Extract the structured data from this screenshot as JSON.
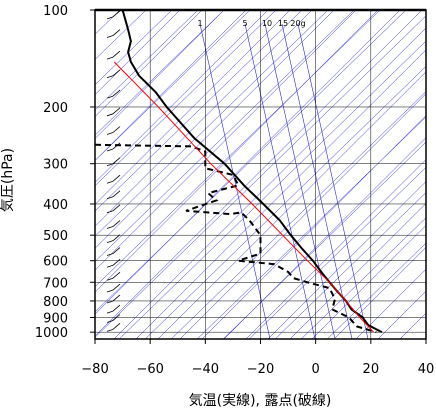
{
  "chart_data": {
    "type": "line",
    "title": "",
    "xlabel": "気温(実線), 露点(破線)",
    "ylabel": "気圧(hPa)",
    "xlim": [
      -80,
      40
    ],
    "ylim": [
      1050,
      100
    ],
    "y_scale": "log",
    "x_ticks": [
      "−80",
      "−60",
      "−40",
      "−20",
      "0",
      "20",
      "40"
    ],
    "y_ticks": [
      100,
      200,
      300,
      400,
      500,
      600,
      700,
      800,
      900,
      1000
    ],
    "mixing_ratio_labels": [
      "1",
      "5",
      "10",
      "15",
      "20g"
    ],
    "colors": {
      "temperature": "#000000",
      "dewpoint": "#000000",
      "parcel": "#ff0000",
      "background_lines": "#2828d8",
      "grid": "#000000"
    },
    "series": [
      {
        "key": "temperature",
        "style": "solid",
        "points": [
          [
            100,
            -70
          ],
          [
            115,
            -68
          ],
          [
            125,
            -67
          ],
          [
            135,
            -68
          ],
          [
            145,
            -67
          ],
          [
            160,
            -64
          ],
          [
            180,
            -58
          ],
          [
            200,
            -54
          ],
          [
            250,
            -44
          ],
          [
            300,
            -33
          ],
          [
            350,
            -26
          ],
          [
            400,
            -19
          ],
          [
            450,
            -13
          ],
          [
            500,
            -9
          ],
          [
            550,
            -5
          ],
          [
            600,
            -1
          ],
          [
            650,
            2
          ],
          [
            700,
            5
          ],
          [
            750,
            8
          ],
          [
            800,
            11
          ],
          [
            850,
            13
          ],
          [
            900,
            17
          ],
          [
            950,
            19
          ],
          [
            1000,
            24
          ]
        ]
      },
      {
        "key": "dewpoint",
        "style": "dashed",
        "points": [
          [
            262,
            -80
          ],
          [
            265,
            -45
          ],
          [
            275,
            -40
          ],
          [
            310,
            -40
          ],
          [
            325,
            -30
          ],
          [
            350,
            -28
          ],
          [
            370,
            -39
          ],
          [
            390,
            -36
          ],
          [
            420,
            -47
          ],
          [
            430,
            -31
          ],
          [
            425,
            -27
          ],
          [
            450,
            -24
          ],
          [
            500,
            -20
          ],
          [
            570,
            -20
          ],
          [
            600,
            -28
          ],
          [
            615,
            -15
          ],
          [
            650,
            -10
          ],
          [
            680,
            -8
          ],
          [
            700,
            -3
          ],
          [
            730,
            5
          ],
          [
            790,
            7
          ],
          [
            850,
            6
          ],
          [
            900,
            12
          ],
          [
            960,
            15
          ],
          [
            1000,
            22
          ]
        ]
      },
      {
        "key": "parcel",
        "style": "solid",
        "points": [
          [
            145,
            -73
          ],
          [
            200,
            -57
          ],
          [
            300,
            -38
          ],
          [
            400,
            -23
          ],
          [
            500,
            -12
          ],
          [
            600,
            -3
          ],
          [
            700,
            5
          ],
          [
            800,
            11
          ],
          [
            900,
            16
          ],
          [
            1000,
            21
          ]
        ]
      }
    ],
    "wind_barbs": true
  }
}
